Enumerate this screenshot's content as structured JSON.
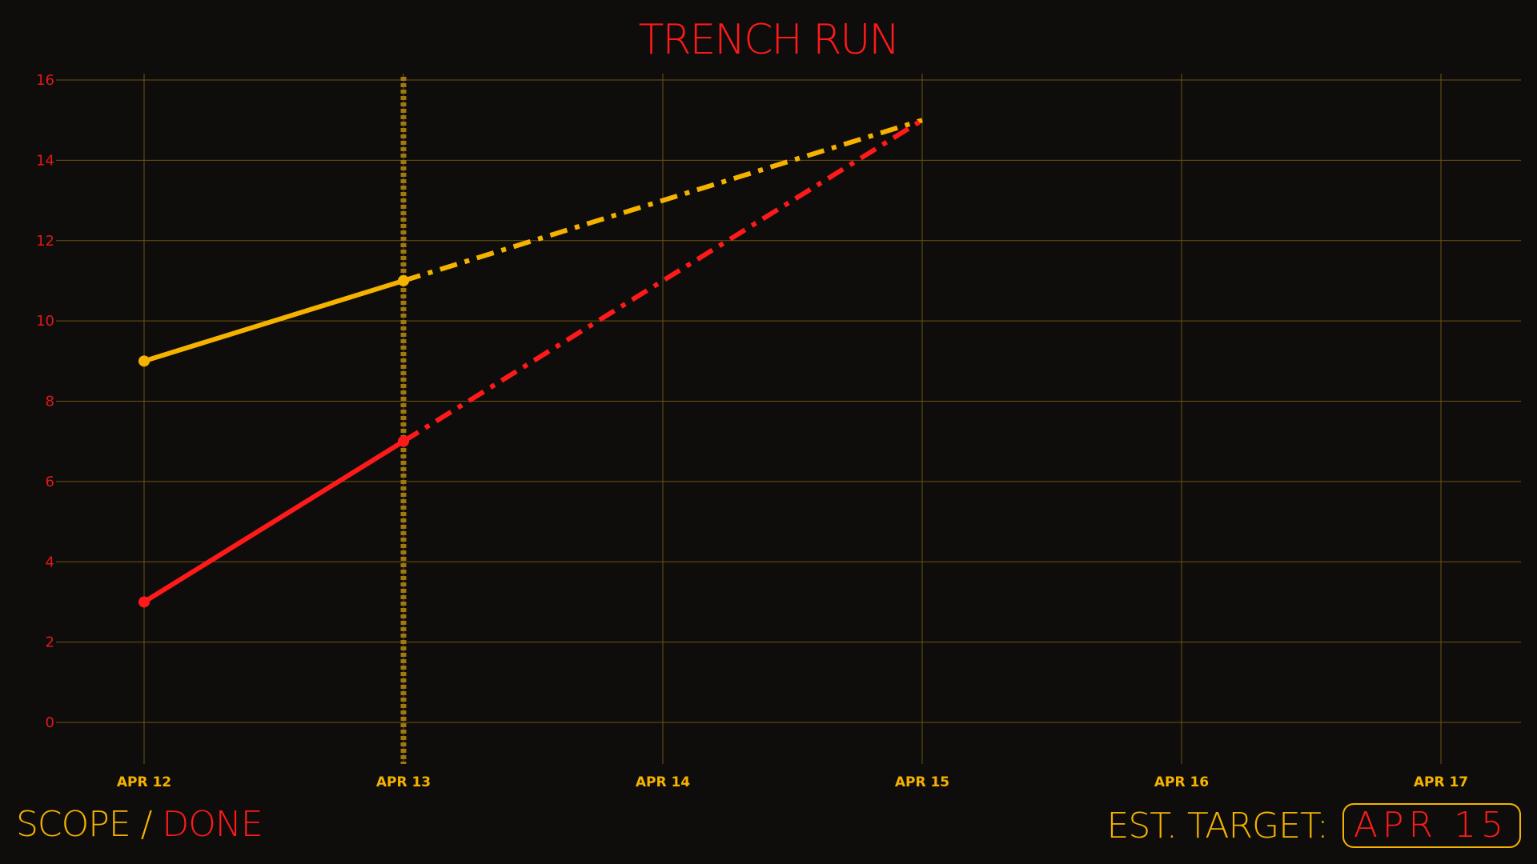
{
  "chart_data": {
    "type": "line",
    "title": "TRENCH RUN",
    "x_ticks": [
      "APR 12",
      "APR 13",
      "APR 14",
      "APR 15",
      "APR 16",
      "APR 17"
    ],
    "y_ticks": [
      0,
      2,
      4,
      6,
      8,
      10,
      12,
      14,
      16
    ],
    "ylim": [
      -1,
      16
    ],
    "grid": true,
    "current_day": "APR 13",
    "series": [
      {
        "name": "SCOPE",
        "color": "#f5b300",
        "actual": [
          {
            "x": "APR 12",
            "y": 9
          },
          {
            "x": "APR 13",
            "y": 11
          }
        ],
        "projected": [
          {
            "x": "APR 13",
            "y": 11
          },
          {
            "x": "APR 15",
            "y": 15
          }
        ]
      },
      {
        "name": "DONE",
        "color": "#ff1a1a",
        "actual": [
          {
            "x": "APR 12",
            "y": 3
          },
          {
            "x": "APR 13",
            "y": 7
          }
        ],
        "projected": [
          {
            "x": "APR 13",
            "y": 7
          },
          {
            "x": "APR 15",
            "y": 15
          }
        ]
      }
    ]
  },
  "legend": {
    "scope_label": "SCOPE",
    "separator": " / ",
    "done_label": "DONE"
  },
  "target": {
    "label": "EST. TARGET:",
    "value": "APR 15"
  },
  "colors": {
    "background": "#0f0d0b",
    "grid": "#6e5410",
    "scope": "#f5b300",
    "done": "#ff1a1a"
  }
}
